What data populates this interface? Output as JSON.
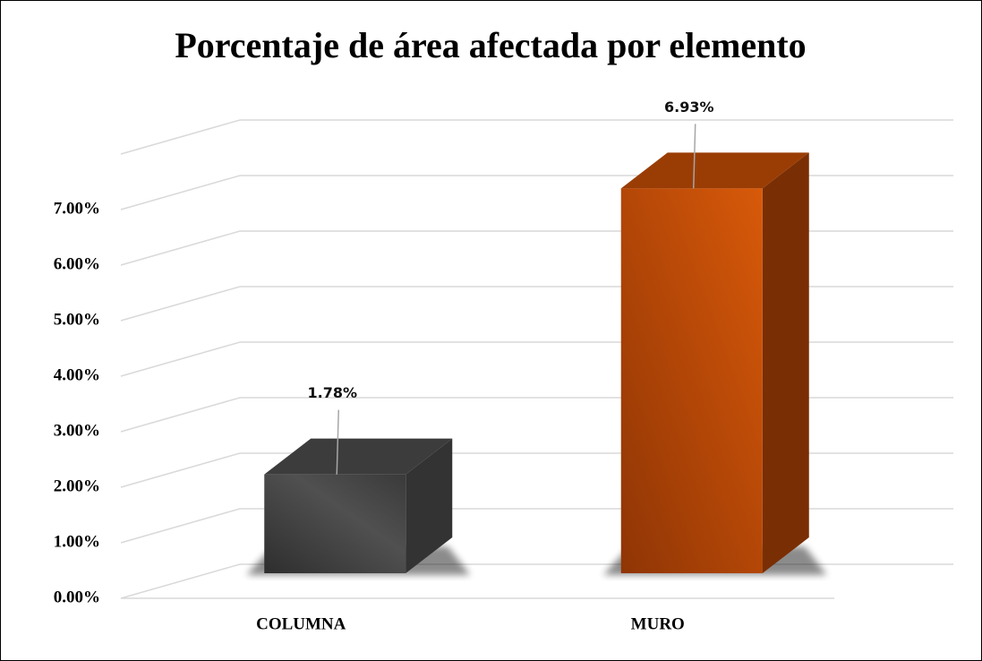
{
  "chart_data": {
    "type": "bar3d",
    "title": "Porcentaje de área afectada por elemento",
    "categories": [
      "COLUMNA",
      "MURO"
    ],
    "values": [
      1.78,
      6.93
    ],
    "value_labels": [
      "1.78%",
      "6.93%"
    ],
    "colors": [
      "#474747",
      "#c24e08"
    ],
    "ylim": [
      0,
      8
    ],
    "yticks": [
      {
        "value": 0,
        "label": "0.00%"
      },
      {
        "value": 1,
        "label": "1.00%"
      },
      {
        "value": 2,
        "label": "2.00%"
      },
      {
        "value": 3,
        "label": "3.00%"
      },
      {
        "value": 4,
        "label": "4.00%"
      },
      {
        "value": 5,
        "label": "5.00%"
      },
      {
        "value": 6,
        "label": "6.00%"
      },
      {
        "value": 7,
        "label": "7.00%"
      }
    ],
    "grid": true
  }
}
